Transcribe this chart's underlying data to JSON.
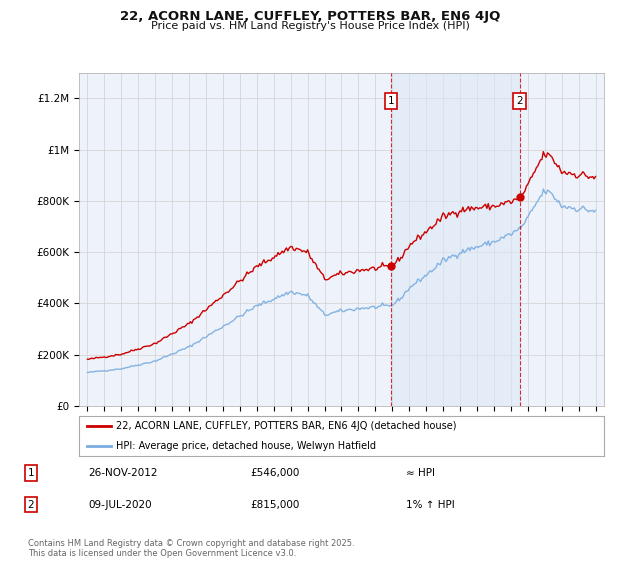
{
  "title": "22, ACORN LANE, CUFFLEY, POTTERS BAR, EN6 4JQ",
  "subtitle": "Price paid vs. HM Land Registry's House Price Index (HPI)",
  "ylim": [
    0,
    1300000
  ],
  "yticks": [
    0,
    200000,
    400000,
    600000,
    800000,
    1000000,
    1200000
  ],
  "ytick_labels": [
    "£0",
    "£200K",
    "£400K",
    "£600K",
    "£800K",
    "£1M",
    "£1.2M"
  ],
  "xticks": [
    1995,
    1996,
    1997,
    1998,
    1999,
    2000,
    2001,
    2002,
    2003,
    2004,
    2005,
    2006,
    2007,
    2008,
    2009,
    2010,
    2011,
    2012,
    2013,
    2014,
    2015,
    2016,
    2017,
    2018,
    2019,
    2020,
    2021,
    2022,
    2023,
    2024,
    2025
  ],
  "xlim": [
    1994.5,
    2025.5
  ],
  "background_color": "#ffffff",
  "plot_bg_color": "#eef2fa",
  "grid_color": "#d0d0d0",
  "line1_color": "#cc0000",
  "line2_color": "#7aace0",
  "shade_color": "#dce8f5",
  "line1_label": "22, ACORN LANE, CUFFLEY, POTTERS BAR, EN6 4JQ (detached house)",
  "line2_label": "HPI: Average price, detached house, Welwyn Hatfield",
  "marker1_x": 2012.92,
  "marker1_y": 546000,
  "marker1_label": "1",
  "marker1_date": "26-NOV-2012",
  "marker1_price": "£546,000",
  "marker1_hpi": "≈ HPI",
  "marker2_x": 2020.53,
  "marker2_y": 815000,
  "marker2_label": "2",
  "marker2_date": "09-JUL-2020",
  "marker2_price": "£815,000",
  "marker2_hpi": "1% ↑ HPI",
  "footer": "Contains HM Land Registry data © Crown copyright and database right 2025.\nThis data is licensed under the Open Government Licence v3.0.",
  "sale_years": [
    2012.92,
    2020.53
  ],
  "sale_prices": [
    546000,
    815000
  ],
  "hpi_scale": 1.0
}
